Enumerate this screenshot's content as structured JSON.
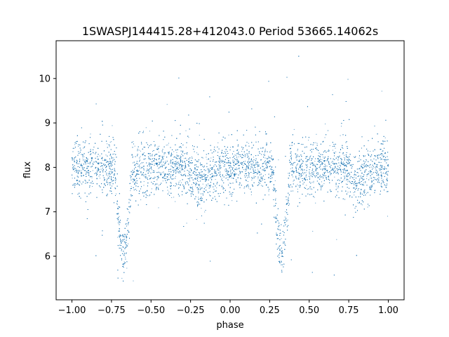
{
  "chart_data": {
    "type": "scatter",
    "title": "1SWASPJ144415.28+412043.0 Period 53665.14062s",
    "xlabel": "phase",
    "ylabel": "flux",
    "xlim": [
      -1.1,
      1.1
    ],
    "ylim": [
      5.02,
      10.85
    ],
    "x_ticks": [
      -1.0,
      -0.75,
      -0.5,
      -0.25,
      0.0,
      0.25,
      0.5,
      0.75,
      1.0
    ],
    "x_tick_labels": [
      "−1.00",
      "−0.75",
      "−0.50",
      "−0.25",
      "0.00",
      "0.25",
      "0.50",
      "0.75",
      "1.00"
    ],
    "y_ticks": [
      6,
      7,
      8,
      9,
      10
    ],
    "y_tick_labels": [
      "6",
      "7",
      "8",
      "9",
      "10"
    ],
    "grid": false,
    "legend": "none",
    "series": [
      {
        "color": "#1f77b4",
        "baseline_flux": 8.0,
        "primary_eclipse": {
          "phase": -0.675,
          "min_flux": 6.05,
          "half_width": 0.055
        },
        "secondary_eclipse": {
          "phase": 0.325,
          "min_flux": 6.05,
          "half_width": 0.055
        },
        "shallow_dips": [
          {
            "phase": -0.175,
            "min_flux": 7.7
          },
          {
            "phase": 0.825,
            "min_flux": 7.7
          }
        ],
        "scatter_sigma": 0.3,
        "phase_range": [
          -1.0,
          1.0
        ]
      }
    ]
  }
}
